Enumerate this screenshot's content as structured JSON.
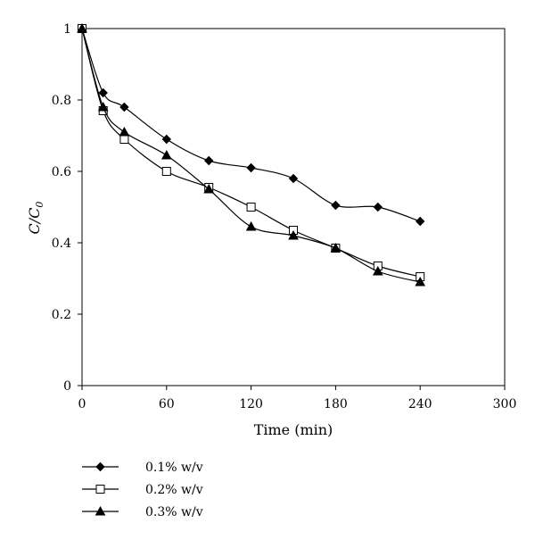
{
  "chart_data": {
    "type": "line",
    "title": "",
    "xlabel": "Time (min)",
    "ylabel_main": "C/C",
    "ylabel_sub": "0",
    "xlim": [
      0,
      300
    ],
    "ylim": [
      0,
      1
    ],
    "x_ticks": [
      "0",
      "60",
      "120",
      "180",
      "240",
      "300"
    ],
    "y_ticks": [
      "0",
      "0.2",
      "0.4",
      "0.6",
      "0.8",
      "1"
    ],
    "grid": false,
    "legend_position": "bottom-left",
    "series": [
      {
        "name": "0.1% w/v",
        "marker": "filled-diamond",
        "x": [
          0,
          15,
          30,
          60,
          90,
          120,
          150,
          180,
          210,
          240
        ],
        "y": [
          1.0,
          0.82,
          0.78,
          0.69,
          0.63,
          0.61,
          0.58,
          0.505,
          0.5,
          0.46
        ]
      },
      {
        "name": "0.2% w/v",
        "marker": "open-square",
        "x": [
          0,
          15,
          30,
          60,
          90,
          120,
          150,
          180,
          210,
          240
        ],
        "y": [
          1.0,
          0.77,
          0.69,
          0.6,
          0.555,
          0.5,
          0.435,
          0.385,
          0.335,
          0.305
        ]
      },
      {
        "name": "0.3% w/v",
        "marker": "filled-triangle",
        "x": [
          0,
          15,
          30,
          60,
          90,
          120,
          150,
          180,
          210,
          240
        ],
        "y": [
          1.0,
          0.78,
          0.71,
          0.645,
          0.55,
          0.445,
          0.42,
          0.385,
          0.32,
          0.29
        ]
      }
    ]
  }
}
